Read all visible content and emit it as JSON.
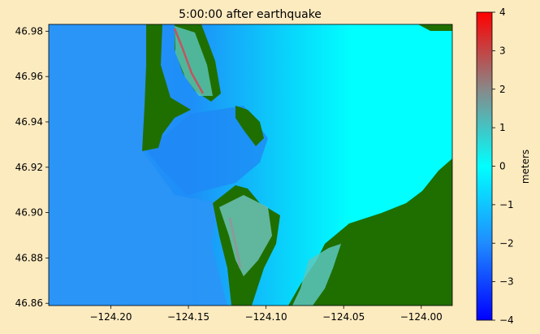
{
  "chart_data": {
    "type": "heatmap",
    "title": "5:00:00 after earthquake",
    "xlabel": "",
    "ylabel": "",
    "xlim": [
      -124.24,
      -123.98
    ],
    "ylim": [
      46.859,
      46.983
    ],
    "xticks": [
      -124.2,
      -124.15,
      -124.1,
      -124.05,
      -124.0
    ],
    "xtick_labels": [
      "−124.20",
      "−124.15",
      "−124.10",
      "−124.05",
      "−124.00"
    ],
    "yticks": [
      46.86,
      46.88,
      46.9,
      46.92,
      46.94,
      46.96,
      46.98
    ],
    "ytick_labels": [
      "46.86",
      "46.88",
      "46.90",
      "46.92",
      "46.94",
      "46.96",
      "46.98"
    ],
    "colorbar": {
      "label": "meters",
      "range": [
        -4,
        4
      ],
      "ticks": [
        4,
        3,
        2,
        1,
        0,
        -1,
        -2,
        -3,
        -4
      ],
      "tick_labels": [
        "4",
        "3",
        "2",
        "1",
        "0",
        "−1",
        "−2",
        "−3",
        "−4"
      ],
      "stops": [
        {
          "v": -4,
          "color": "#0000ff"
        },
        {
          "v": -2,
          "color": "#1f8cff"
        },
        {
          "v": 0,
          "color": "#00ffff"
        },
        {
          "v": 2,
          "color": "#888888"
        },
        {
          "v": 4,
          "color": "#ff0000"
        }
      ]
    },
    "land_color": "#1f6f00",
    "grid": false
  }
}
